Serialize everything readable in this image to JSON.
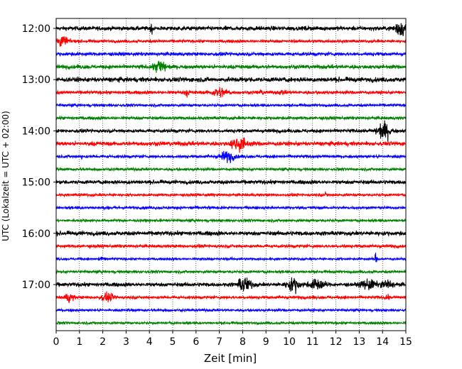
{
  "chart_data": {
    "type": "line",
    "title": "",
    "xlabel": "Zeit  [min]",
    "ylabel": "UTC (Lokalzeit = UTC + 02:00)",
    "xlim": [
      0,
      15
    ],
    "x_ticks": [
      0,
      1,
      2,
      3,
      4,
      5,
      6,
      7,
      8,
      9,
      10,
      11,
      12,
      13,
      14,
      15
    ],
    "x_tick_labels": [
      "0",
      "1",
      "2",
      "3",
      "4",
      "5",
      "6",
      "7",
      "8",
      "9",
      "10",
      "11",
      "12",
      "13",
      "14",
      "15"
    ],
    "y_tick_labels": [
      "12:00",
      "13:00",
      "14:00",
      "15:00",
      "16:00",
      "17:00"
    ],
    "y_tick_rows": [
      0,
      4,
      8,
      12,
      16,
      20
    ],
    "grid": {
      "x": true,
      "y": false,
      "style": "dotted"
    },
    "colors": [
      "#000000",
      "#ff0000",
      "#0000ff",
      "#008000"
    ],
    "traces": [
      {
        "start": "12:00",
        "color": "#000000",
        "noise": 0.22,
        "spikes": [
          4.15,
          7.5
        ],
        "events": [
          {
            "t": 14.8,
            "amp": 0.75,
            "width": 0.25
          },
          {
            "t": 4.1,
            "amp": 0.35,
            "width": 0.08
          }
        ]
      },
      {
        "start": "12:15",
        "color": "#ff0000",
        "noise": 0.15,
        "spikes": [],
        "events": [
          {
            "t": 0.25,
            "amp": 0.55,
            "width": 0.25
          }
        ]
      },
      {
        "start": "12:30",
        "color": "#0000ff",
        "noise": 0.18,
        "spikes": [],
        "events": []
      },
      {
        "start": "12:45",
        "color": "#008000",
        "noise": 0.2,
        "spikes": [],
        "events": [
          {
            "t": 4.45,
            "amp": 0.75,
            "width": 0.25
          }
        ]
      },
      {
        "start": "13:00",
        "color": "#000000",
        "noise": 0.25,
        "spikes": [],
        "events": []
      },
      {
        "start": "13:15",
        "color": "#ff0000",
        "noise": 0.17,
        "spikes": [
          5.6
        ],
        "events": [
          {
            "t": 7.0,
            "amp": 0.45,
            "width": 0.35
          },
          {
            "t": 5.6,
            "amp": 0.3,
            "width": 0.1
          },
          {
            "t": 8.8,
            "amp": 0.25,
            "width": 0.1
          },
          {
            "t": 9.7,
            "amp": 0.2,
            "width": 0.1
          }
        ]
      },
      {
        "start": "13:30",
        "color": "#0000ff",
        "noise": 0.14,
        "spikes": [],
        "events": []
      },
      {
        "start": "13:45",
        "color": "#008000",
        "noise": 0.16,
        "spikes": [],
        "events": []
      },
      {
        "start": "14:00",
        "color": "#000000",
        "noise": 0.18,
        "spikes": [],
        "events": [
          {
            "t": 14.05,
            "amp": 0.85,
            "width": 0.3
          }
        ]
      },
      {
        "start": "14:15",
        "color": "#ff0000",
        "noise": 0.22,
        "spikes": [],
        "events": [
          {
            "t": 7.85,
            "amp": 0.75,
            "width": 0.3
          }
        ]
      },
      {
        "start": "14:30",
        "color": "#0000ff",
        "noise": 0.15,
        "spikes": [
          1.1
        ],
        "events": [
          {
            "t": 7.35,
            "amp": 0.55,
            "width": 0.3
          }
        ]
      },
      {
        "start": "14:45",
        "color": "#008000",
        "noise": 0.14,
        "spikes": [],
        "events": []
      },
      {
        "start": "15:00",
        "color": "#000000",
        "noise": 0.2,
        "spikes": [],
        "events": []
      },
      {
        "start": "15:15",
        "color": "#ff0000",
        "noise": 0.14,
        "spikes": [
          11.6
        ],
        "events": [
          {
            "t": 11.6,
            "amp": 0.3,
            "width": 0.06
          }
        ]
      },
      {
        "start": "15:30",
        "color": "#0000ff",
        "noise": 0.14,
        "spikes": [
          1.8
        ],
        "events": []
      },
      {
        "start": "15:45",
        "color": "#008000",
        "noise": 0.14,
        "spikes": [
          4.5
        ],
        "events": []
      },
      {
        "start": "16:00",
        "color": "#000000",
        "noise": 0.22,
        "spikes": [],
        "events": []
      },
      {
        "start": "16:15",
        "color": "#ff0000",
        "noise": 0.16,
        "spikes": [],
        "events": []
      },
      {
        "start": "16:30",
        "color": "#0000ff",
        "noise": 0.12,
        "spikes": [
          1.9,
          13.7
        ],
        "events": [
          {
            "t": 1.9,
            "amp": 0.55,
            "width": 0.06
          },
          {
            "t": 13.7,
            "amp": 0.45,
            "width": 0.05
          }
        ]
      },
      {
        "start": "16:45",
        "color": "#008000",
        "noise": 0.14,
        "spikes": [],
        "events": []
      },
      {
        "start": "17:00",
        "color": "#000000",
        "noise": 0.2,
        "spikes": [],
        "events": [
          {
            "t": 8.1,
            "amp": 0.7,
            "width": 0.3
          },
          {
            "t": 10.2,
            "amp": 0.6,
            "width": 0.3
          },
          {
            "t": 11.2,
            "amp": 0.55,
            "width": 0.3
          },
          {
            "t": 13.4,
            "amp": 0.5,
            "width": 0.3
          },
          {
            "t": 14.2,
            "amp": 0.4,
            "width": 0.25
          }
        ]
      },
      {
        "start": "17:15",
        "color": "#ff0000",
        "noise": 0.15,
        "spikes": [],
        "events": [
          {
            "t": 0.55,
            "amp": 0.45,
            "width": 0.2
          },
          {
            "t": 2.2,
            "amp": 0.35,
            "width": 0.3
          },
          {
            "t": 14.2,
            "amp": 0.25,
            "width": 0.1
          }
        ]
      },
      {
        "start": "17:30",
        "color": "#0000ff",
        "noise": 0.13,
        "spikes": [],
        "events": []
      },
      {
        "start": "17:45",
        "color": "#008000",
        "noise": 0.13,
        "spikes": [],
        "events": []
      }
    ]
  }
}
